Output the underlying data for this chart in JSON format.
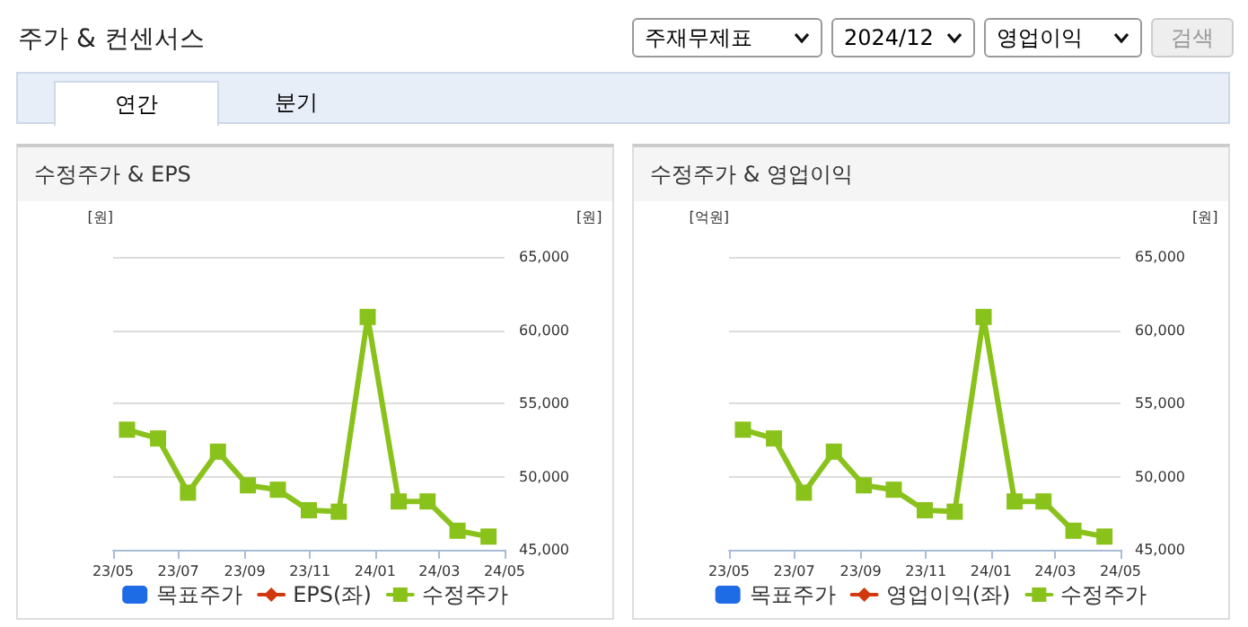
{
  "chart_data": [
    {
      "type": "other",
      "title": "주가 & 컨센서스",
      "annotations": [
        "주재무제표",
        "2024/12",
        "영업이익",
        "검색",
        "연간",
        "분기"
      ]
    },
    {
      "type": "line",
      "title": "수정주가 & EPS",
      "ylabel": "[원]",
      "y2label": "[원]",
      "x": [
        "2023-05-14",
        "2023-06-12",
        "2023-07-10",
        "2023-08-07",
        "2023-09-04",
        "2023-10-02",
        "2023-10-31",
        "2023-11-28",
        "2023-12-25",
        "2024-01-23",
        "2024-02-19",
        "2024-03-18",
        "2024-04-16"
      ],
      "xlim": [
        "2023-05-01",
        "2024-05-01"
      ],
      "xticks": [
        {
          "value": "2023-05-01",
          "label": "23/05"
        },
        {
          "value": "2023-07-01",
          "label": "23/07"
        },
        {
          "value": "2023-09-01",
          "label": "23/09"
        },
        {
          "value": "2023-11-01",
          "label": "23/11"
        },
        {
          "value": "2024-01-01",
          "label": "24/01"
        },
        {
          "value": "2024-03-01",
          "label": "24/03"
        },
        {
          "value": "2024-05-01",
          "label": "24/05"
        }
      ],
      "y2lim": [
        45000,
        65000
      ],
      "y2ticks": [
        {
          "value": 45000,
          "label": "45,000"
        },
        {
          "value": 50000,
          "label": "50,000"
        },
        {
          "value": 55000,
          "label": "55,000"
        },
        {
          "value": 60000,
          "label": "60,000"
        },
        {
          "value": 65000,
          "label": "65,000"
        }
      ],
      "grid": "y",
      "legend": "bottom",
      "marker": "square",
      "series": [
        {
          "name": "목표주가",
          "type": "bar",
          "color": "#1e6be6",
          "values": [
            null,
            null,
            null,
            null,
            null,
            null,
            null,
            null,
            null,
            null,
            null,
            null,
            null
          ]
        },
        {
          "name": "EPS(좌)",
          "type": "line",
          "marker": "diamond",
          "color": "#d2380e",
          "values": [
            null,
            null,
            null,
            null,
            null,
            null,
            null,
            null,
            null,
            null,
            null,
            null,
            null
          ]
        },
        {
          "name": "수정주가",
          "type": "line",
          "axis": "y2",
          "color": "#8ac21c",
          "values": [
            53200,
            52600,
            48900,
            51700,
            49400,
            49100,
            47700,
            47600,
            60900,
            48300,
            48300,
            46300,
            45900
          ]
        }
      ]
    },
    {
      "type": "line",
      "title": "수정주가 & 영업이익",
      "ylabel": "[억원]",
      "y2label": "[원]",
      "x": [
        "2023-05-14",
        "2023-06-12",
        "2023-07-10",
        "2023-08-07",
        "2023-09-04",
        "2023-10-02",
        "2023-10-31",
        "2023-11-28",
        "2023-12-25",
        "2024-01-23",
        "2024-02-19",
        "2024-03-18",
        "2024-04-16"
      ],
      "xlim": [
        "2023-05-01",
        "2024-05-01"
      ],
      "xticks": [
        {
          "value": "2023-05-01",
          "label": "23/05"
        },
        {
          "value": "2023-07-01",
          "label": "23/07"
        },
        {
          "value": "2023-09-01",
          "label": "23/09"
        },
        {
          "value": "2023-11-01",
          "label": "23/11"
        },
        {
          "value": "2024-01-01",
          "label": "24/01"
        },
        {
          "value": "2024-03-01",
          "label": "24/03"
        },
        {
          "value": "2024-05-01",
          "label": "24/05"
        }
      ],
      "y2lim": [
        45000,
        65000
      ],
      "y2ticks": [
        {
          "value": 45000,
          "label": "45,000"
        },
        {
          "value": 50000,
          "label": "50,000"
        },
        {
          "value": 55000,
          "label": "55,000"
        },
        {
          "value": 60000,
          "label": "60,000"
        },
        {
          "value": 65000,
          "label": "65,000"
        }
      ],
      "grid": "y",
      "legend": "bottom",
      "marker": "square",
      "series": [
        {
          "name": "목표주가",
          "type": "bar",
          "color": "#1e6be6",
          "values": [
            null,
            null,
            null,
            null,
            null,
            null,
            null,
            null,
            null,
            null,
            null,
            null,
            null
          ]
        },
        {
          "name": "영업이익(좌)",
          "type": "line",
          "marker": "diamond",
          "color": "#d2380e",
          "values": [
            null,
            null,
            null,
            null,
            null,
            null,
            null,
            null,
            null,
            null,
            null,
            null,
            null
          ]
        },
        {
          "name": "수정주가",
          "type": "line",
          "axis": "y2",
          "color": "#8ac21c",
          "values": [
            53200,
            52600,
            48900,
            51700,
            49400,
            49100,
            47700,
            47600,
            60900,
            48300,
            48300,
            46300,
            45900
          ]
        }
      ]
    }
  ]
}
